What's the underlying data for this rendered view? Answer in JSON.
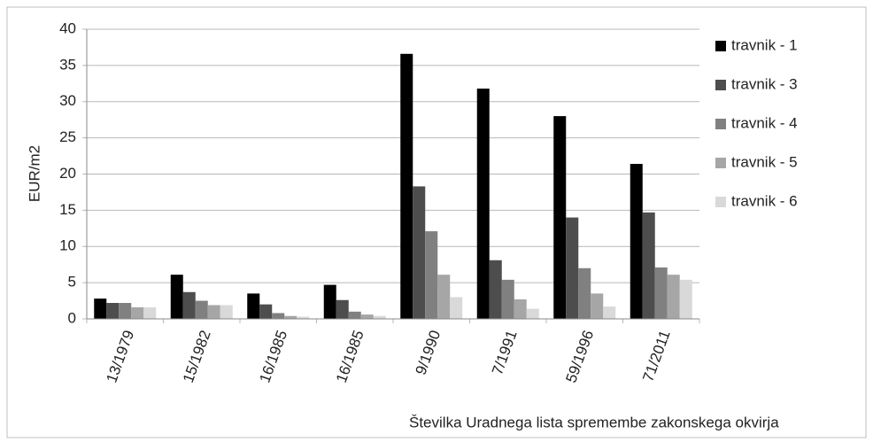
{
  "chart_data": {
    "type": "bar",
    "y_label": "EUR/m2",
    "x_label": "Številka Uradnega lista spremembe zakonskega okvirja",
    "categories": [
      "13/1979",
      "15/1982",
      "16/1985",
      "16/1985",
      "9/1990",
      "7/1991",
      "59/1996",
      "71/2011"
    ],
    "series": [
      {
        "name": "travnik - 1",
        "color": "#000000",
        "values": [
          2.8,
          6.1,
          3.5,
          4.7,
          36.6,
          31.8,
          28.0,
          21.4
        ]
      },
      {
        "name": "travnik - 3",
        "color": "#4d4d4d",
        "values": [
          2.2,
          3.7,
          2.0,
          2.6,
          18.3,
          8.1,
          14.0,
          14.7
        ]
      },
      {
        "name": "travnik - 4",
        "color": "#808080",
        "values": [
          2.2,
          2.5,
          0.8,
          1.0,
          12.1,
          5.4,
          7.0,
          7.1
        ]
      },
      {
        "name": "travnik - 5",
        "color": "#a6a6a6",
        "values": [
          1.6,
          1.9,
          0.4,
          0.6,
          6.1,
          2.7,
          3.5,
          6.1
        ]
      },
      {
        "name": "travnik - 6",
        "color": "#d9d9d9",
        "values": [
          1.6,
          1.9,
          0.3,
          0.4,
          3.0,
          1.4,
          1.7,
          5.4
        ]
      }
    ],
    "ylim": [
      0,
      40
    ],
    "yticks": [
      0,
      5,
      10,
      15,
      20,
      25,
      30,
      35,
      40
    ],
    "grid": true,
    "legend": "right"
  }
}
